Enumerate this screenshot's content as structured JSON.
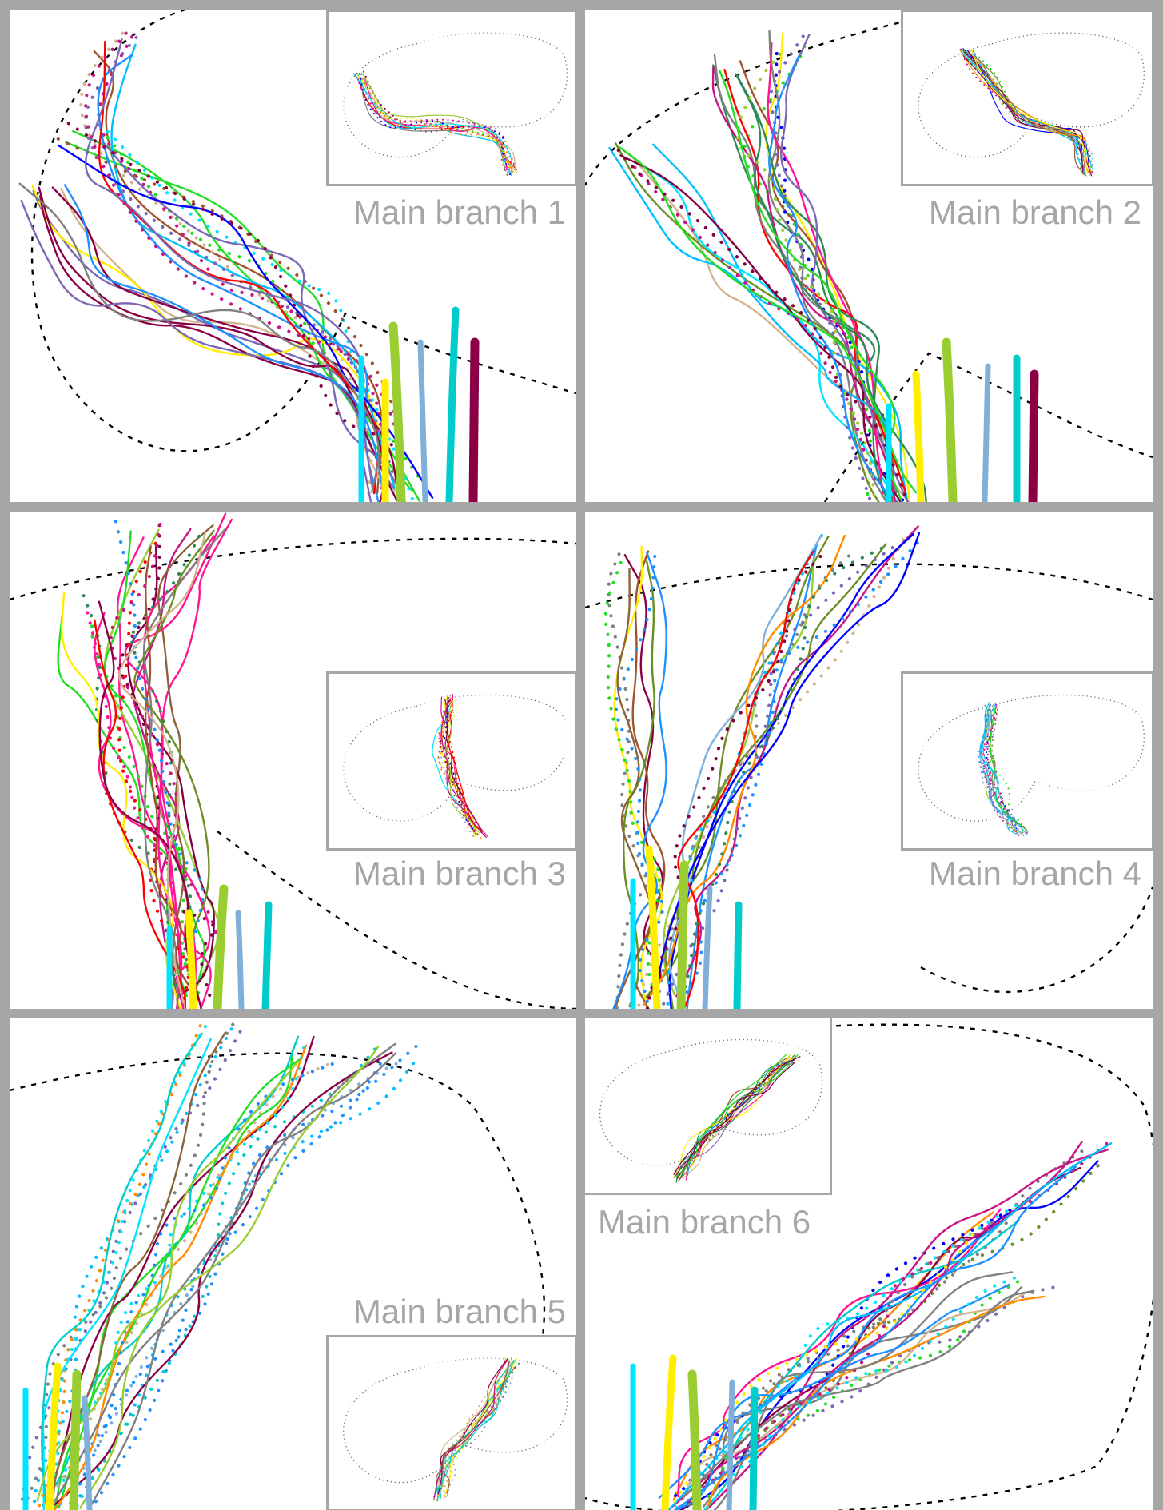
{
  "figure": {
    "panels": [
      {
        "id": 1,
        "label": "Main branch 1"
      },
      {
        "id": 2,
        "label": "Main branch 2"
      },
      {
        "id": 3,
        "label": "Main branch 3"
      },
      {
        "id": 4,
        "label": "Main branch 4"
      },
      {
        "id": 5,
        "label": "Main branch 5"
      },
      {
        "id": 6,
        "label": "Main branch 6"
      }
    ],
    "colors": {
      "background": "#ffffff",
      "frame": "#a6a6a6",
      "label": "#a6a6a6",
      "outline": "#000000",
      "palette": [
        "#ff0000",
        "#00e5ff",
        "#0000ff",
        "#22dd22",
        "#8b0045",
        "#a0522d",
        "#ffee00",
        "#7b68b5",
        "#1e90ff",
        "#00bfff",
        "#8c6239",
        "#9acd32",
        "#c71585",
        "#ff8c00",
        "#6b8e23",
        "#d2b48c",
        "#7fb0d9",
        "#800040",
        "#2e8b57",
        "#ff1493",
        "#808080",
        "#00cccc"
      ]
    }
  }
}
